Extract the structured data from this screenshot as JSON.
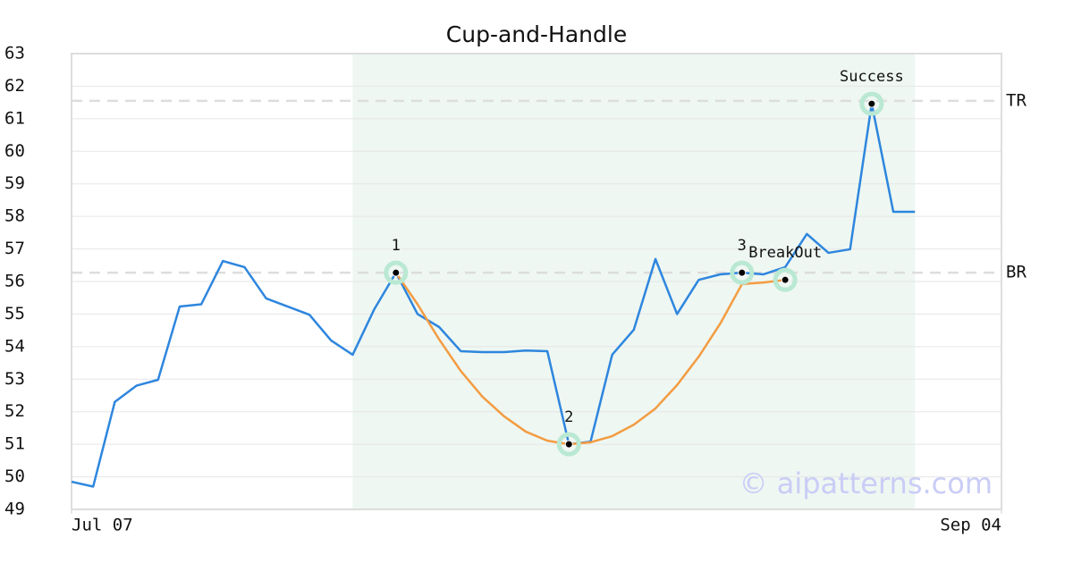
{
  "chart_data": {
    "type": "line",
    "title": "Cup-and-Handle",
    "x": [
      0,
      1,
      2,
      3,
      4,
      5,
      6,
      7,
      8,
      9,
      10,
      11,
      12,
      13,
      14,
      15,
      16,
      17,
      18,
      19,
      20,
      21,
      22,
      23,
      24,
      25,
      26,
      27,
      28,
      29,
      30,
      31,
      32,
      33,
      34,
      35,
      36,
      37,
      38,
      39
    ],
    "xlim": [
      0,
      43
    ],
    "xticks": [
      {
        "value": 0,
        "label": "Jul 07"
      },
      {
        "value": 43,
        "label": "Sep 04"
      }
    ],
    "ylim": [
      49,
      63
    ],
    "yticks": [
      49,
      50,
      51,
      52,
      53,
      54,
      55,
      56,
      57,
      58,
      59,
      60,
      61,
      62,
      63
    ],
    "grid": true,
    "series": [
      {
        "color": "#2e86de",
        "values": [
          49.85,
          49.7,
          52.3,
          52.8,
          52.98,
          55.23,
          55.3,
          56.63,
          56.44,
          55.48,
          55.23,
          54.98,
          54.19,
          53.75,
          55.15,
          56.27,
          55.0,
          54.6,
          53.86,
          53.83,
          53.83,
          53.88,
          53.86,
          51.0,
          51.08,
          53.75,
          54.52,
          56.69,
          55.0,
          56.05,
          56.22,
          56.27,
          56.22,
          56.44,
          57.46,
          56.88,
          56.99,
          61.46,
          58.14,
          58.14
        ]
      },
      {
        "color": "#f39c42",
        "values": [
          null,
          null,
          null,
          null,
          null,
          null,
          null,
          null,
          null,
          null,
          null,
          null,
          null,
          null,
          null,
          56.27,
          55.3,
          54.22,
          53.25,
          52.46,
          51.86,
          51.39,
          51.11,
          51.0,
          51.06,
          51.25,
          51.6,
          52.1,
          52.82,
          53.69,
          54.71,
          55.92,
          55.97,
          56.05,
          null,
          null,
          null,
          null,
          null,
          null
        ]
      }
    ],
    "shaded_region": {
      "x": [
        13,
        39
      ],
      "color": "#eef7f2"
    },
    "hlines": [
      {
        "label": "TR",
        "value": 61.55
      },
      {
        "label": "BR",
        "value": 56.27
      }
    ],
    "points": [
      {
        "label": "1",
        "x": 15,
        "y": 56.27
      },
      {
        "label": "2",
        "x": 23,
        "y": 51.0
      },
      {
        "label": "3",
        "x": 31,
        "y": 56.27
      },
      {
        "label": "BreakOut",
        "x": 33,
        "y": 56.05
      },
      {
        "label": "Success",
        "x": 37,
        "y": 61.46
      }
    ],
    "watermark": "© aipatterns.com"
  }
}
